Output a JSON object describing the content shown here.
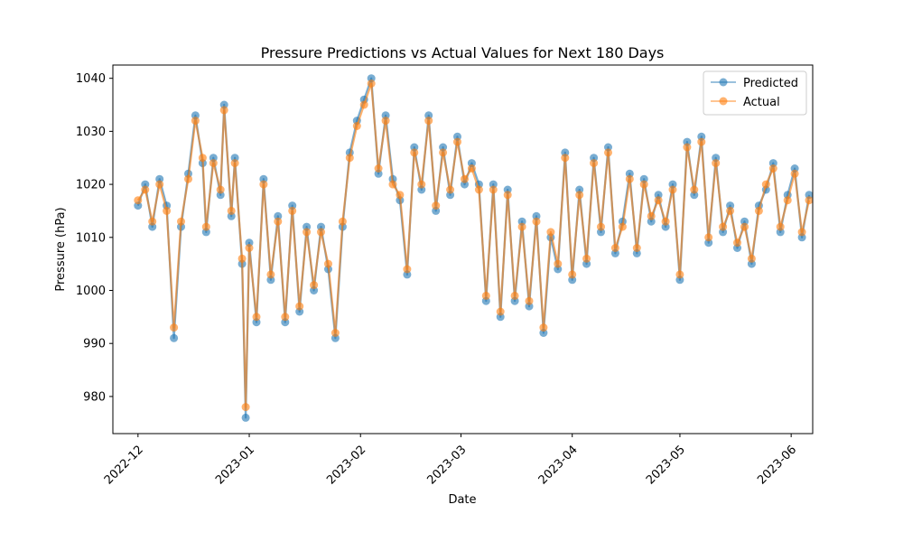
{
  "chart_data": {
    "type": "line",
    "title": "Pressure Predictions vs Actual Values for Next 180 Days",
    "xlabel": "Date",
    "ylabel": "Pressure (hPa)",
    "xlim": [
      "2022-11-24",
      "2023-06-07"
    ],
    "ylim": [
      973,
      1042.5
    ],
    "x_ticks": [
      "2022-12",
      "2023-01",
      "2023-02",
      "2023-03",
      "2023-04",
      "2023-05",
      "2023-06"
    ],
    "y_ticks": [
      980,
      990,
      1000,
      1010,
      1020,
      1030,
      1040
    ],
    "grid": false,
    "legend": "top-right",
    "marker": "circle",
    "x_tick_rotation": "45",
    "series": [
      {
        "name": "Predicted",
        "color": "#1f77b4",
        "points": [
          [
            "2022-12-01",
            1016
          ],
          [
            "2022-12-03",
            1020
          ],
          [
            "2022-12-05",
            1012
          ],
          [
            "2022-12-07",
            1021
          ],
          [
            "2022-12-09",
            1016
          ],
          [
            "2022-12-11",
            991
          ],
          [
            "2022-12-13",
            1012
          ],
          [
            "2022-12-15",
            1022
          ],
          [
            "2022-12-17",
            1033
          ],
          [
            "2022-12-19",
            1024
          ],
          [
            "2022-12-20",
            1011
          ],
          [
            "2022-12-22",
            1025
          ],
          [
            "2022-12-24",
            1018
          ],
          [
            "2022-12-25",
            1035
          ],
          [
            "2022-12-27",
            1014
          ],
          [
            "2022-12-28",
            1025
          ],
          [
            "2022-12-30",
            1005
          ],
          [
            "2022-12-31",
            976
          ],
          [
            "2023-01-01",
            1009
          ],
          [
            "2023-01-03",
            994
          ],
          [
            "2023-01-05",
            1021
          ],
          [
            "2023-01-07",
            1002
          ],
          [
            "2023-01-09",
            1014
          ],
          [
            "2023-01-11",
            994
          ],
          [
            "2023-01-13",
            1016
          ],
          [
            "2023-01-15",
            996
          ],
          [
            "2023-01-17",
            1012
          ],
          [
            "2023-01-19",
            1000
          ],
          [
            "2023-01-21",
            1012
          ],
          [
            "2023-01-23",
            1004
          ],
          [
            "2023-01-25",
            991
          ],
          [
            "2023-01-27",
            1012
          ],
          [
            "2023-01-29",
            1026
          ],
          [
            "2023-01-31",
            1032
          ],
          [
            "2023-02-02",
            1036
          ],
          [
            "2023-02-04",
            1040
          ],
          [
            "2023-02-06",
            1022
          ],
          [
            "2023-02-08",
            1033
          ],
          [
            "2023-02-10",
            1021
          ],
          [
            "2023-02-12",
            1017
          ],
          [
            "2023-02-14",
            1003
          ],
          [
            "2023-02-16",
            1027
          ],
          [
            "2023-02-18",
            1019
          ],
          [
            "2023-02-20",
            1033
          ],
          [
            "2023-02-22",
            1015
          ],
          [
            "2023-02-24",
            1027
          ],
          [
            "2023-02-26",
            1018
          ],
          [
            "2023-02-28",
            1029
          ],
          [
            "2023-03-02",
            1020
          ],
          [
            "2023-03-04",
            1024
          ],
          [
            "2023-03-06",
            1020
          ],
          [
            "2023-03-08",
            998
          ],
          [
            "2023-03-10",
            1020
          ],
          [
            "2023-03-12",
            995
          ],
          [
            "2023-03-14",
            1019
          ],
          [
            "2023-03-16",
            998
          ],
          [
            "2023-03-18",
            1013
          ],
          [
            "2023-03-20",
            997
          ],
          [
            "2023-03-22",
            1014
          ],
          [
            "2023-03-24",
            992
          ],
          [
            "2023-03-26",
            1010
          ],
          [
            "2023-03-28",
            1004
          ],
          [
            "2023-03-30",
            1026
          ],
          [
            "2023-04-01",
            1002
          ],
          [
            "2023-04-03",
            1019
          ],
          [
            "2023-04-05",
            1005
          ],
          [
            "2023-04-07",
            1025
          ],
          [
            "2023-04-09",
            1011
          ],
          [
            "2023-04-11",
            1027
          ],
          [
            "2023-04-13",
            1007
          ],
          [
            "2023-04-15",
            1013
          ],
          [
            "2023-04-17",
            1022
          ],
          [
            "2023-04-19",
            1007
          ],
          [
            "2023-04-21",
            1021
          ],
          [
            "2023-04-23",
            1013
          ],
          [
            "2023-04-25",
            1018
          ],
          [
            "2023-04-27",
            1012
          ],
          [
            "2023-04-29",
            1020
          ],
          [
            "2023-05-01",
            1002
          ],
          [
            "2023-05-03",
            1028
          ],
          [
            "2023-05-05",
            1018
          ],
          [
            "2023-05-07",
            1029
          ],
          [
            "2023-05-09",
            1009
          ],
          [
            "2023-05-11",
            1025
          ],
          [
            "2023-05-13",
            1011
          ],
          [
            "2023-05-15",
            1016
          ],
          [
            "2023-05-17",
            1008
          ],
          [
            "2023-05-19",
            1013
          ],
          [
            "2023-05-21",
            1005
          ],
          [
            "2023-05-23",
            1016
          ],
          [
            "2023-05-25",
            1019
          ],
          [
            "2023-05-27",
            1024
          ],
          [
            "2023-05-29",
            1011
          ],
          [
            "2023-05-31",
            1018
          ],
          [
            "2023-06-02",
            1023
          ],
          [
            "2023-06-04",
            1010
          ],
          [
            "2023-06-06",
            1018
          ]
        ]
      },
      {
        "name": "Actual",
        "color": "#ff7f0e",
        "points": [
          [
            "2022-12-01",
            1017
          ],
          [
            "2022-12-03",
            1019
          ],
          [
            "2022-12-05",
            1013
          ],
          [
            "2022-12-07",
            1020
          ],
          [
            "2022-12-09",
            1015
          ],
          [
            "2022-12-11",
            993
          ],
          [
            "2022-12-13",
            1013
          ],
          [
            "2022-12-15",
            1021
          ],
          [
            "2022-12-17",
            1032
          ],
          [
            "2022-12-19",
            1025
          ],
          [
            "2022-12-20",
            1012
          ],
          [
            "2022-12-22",
            1024
          ],
          [
            "2022-12-24",
            1019
          ],
          [
            "2022-12-25",
            1034
          ],
          [
            "2022-12-27",
            1015
          ],
          [
            "2022-12-28",
            1024
          ],
          [
            "2022-12-30",
            1006
          ],
          [
            "2022-12-31",
            978
          ],
          [
            "2023-01-01",
            1008
          ],
          [
            "2023-01-03",
            995
          ],
          [
            "2023-01-05",
            1020
          ],
          [
            "2023-01-07",
            1003
          ],
          [
            "2023-01-09",
            1013
          ],
          [
            "2023-01-11",
            995
          ],
          [
            "2023-01-13",
            1015
          ],
          [
            "2023-01-15",
            997
          ],
          [
            "2023-01-17",
            1011
          ],
          [
            "2023-01-19",
            1001
          ],
          [
            "2023-01-21",
            1011
          ],
          [
            "2023-01-23",
            1005
          ],
          [
            "2023-01-25",
            992
          ],
          [
            "2023-01-27",
            1013
          ],
          [
            "2023-01-29",
            1025
          ],
          [
            "2023-01-31",
            1031
          ],
          [
            "2023-02-02",
            1035
          ],
          [
            "2023-02-04",
            1039
          ],
          [
            "2023-02-06",
            1023
          ],
          [
            "2023-02-08",
            1032
          ],
          [
            "2023-02-10",
            1020
          ],
          [
            "2023-02-12",
            1018
          ],
          [
            "2023-02-14",
            1004
          ],
          [
            "2023-02-16",
            1026
          ],
          [
            "2023-02-18",
            1020
          ],
          [
            "2023-02-20",
            1032
          ],
          [
            "2023-02-22",
            1016
          ],
          [
            "2023-02-24",
            1026
          ],
          [
            "2023-02-26",
            1019
          ],
          [
            "2023-02-28",
            1028
          ],
          [
            "2023-03-02",
            1021
          ],
          [
            "2023-03-04",
            1023
          ],
          [
            "2023-03-06",
            1019
          ],
          [
            "2023-03-08",
            999
          ],
          [
            "2023-03-10",
            1019
          ],
          [
            "2023-03-12",
            996
          ],
          [
            "2023-03-14",
            1018
          ],
          [
            "2023-03-16",
            999
          ],
          [
            "2023-03-18",
            1012
          ],
          [
            "2023-03-20",
            998
          ],
          [
            "2023-03-22",
            1013
          ],
          [
            "2023-03-24",
            993
          ],
          [
            "2023-03-26",
            1011
          ],
          [
            "2023-03-28",
            1005
          ],
          [
            "2023-03-30",
            1025
          ],
          [
            "2023-04-01",
            1003
          ],
          [
            "2023-04-03",
            1018
          ],
          [
            "2023-04-05",
            1006
          ],
          [
            "2023-04-07",
            1024
          ],
          [
            "2023-04-09",
            1012
          ],
          [
            "2023-04-11",
            1026
          ],
          [
            "2023-04-13",
            1008
          ],
          [
            "2023-04-15",
            1012
          ],
          [
            "2023-04-17",
            1021
          ],
          [
            "2023-04-19",
            1008
          ],
          [
            "2023-04-21",
            1020
          ],
          [
            "2023-04-23",
            1014
          ],
          [
            "2023-04-25",
            1017
          ],
          [
            "2023-04-27",
            1013
          ],
          [
            "2023-04-29",
            1019
          ],
          [
            "2023-05-01",
            1003
          ],
          [
            "2023-05-03",
            1027
          ],
          [
            "2023-05-05",
            1019
          ],
          [
            "2023-05-07",
            1028
          ],
          [
            "2023-05-09",
            1010
          ],
          [
            "2023-05-11",
            1024
          ],
          [
            "2023-05-13",
            1012
          ],
          [
            "2023-05-15",
            1015
          ],
          [
            "2023-05-17",
            1009
          ],
          [
            "2023-05-19",
            1012
          ],
          [
            "2023-05-21",
            1006
          ],
          [
            "2023-05-23",
            1015
          ],
          [
            "2023-05-25",
            1020
          ],
          [
            "2023-05-27",
            1023
          ],
          [
            "2023-05-29",
            1012
          ],
          [
            "2023-05-31",
            1017
          ],
          [
            "2023-06-02",
            1022
          ],
          [
            "2023-06-04",
            1011
          ],
          [
            "2023-06-06",
            1017
          ]
        ]
      }
    ]
  }
}
